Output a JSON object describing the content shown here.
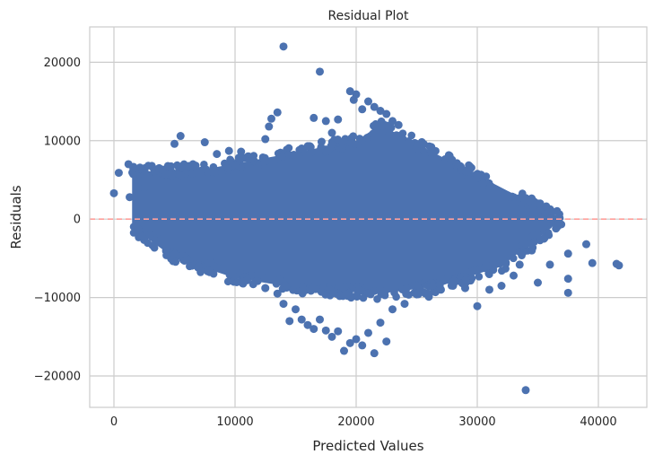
{
  "chart_data": {
    "type": "scatter",
    "title": "Residual Plot",
    "xlabel": "Predicted Values",
    "ylabel": "Residuals",
    "xlim": [
      -2000,
      44000
    ],
    "ylim": [
      -24000,
      24500
    ],
    "xticks": [
      0,
      10000,
      20000,
      30000,
      40000
    ],
    "yticks": [
      -20000,
      -10000,
      0,
      10000,
      20000
    ],
    "xtick_labels": [
      "0",
      "10000",
      "20000",
      "30000",
      "40000"
    ],
    "ytick_labels": [
      "−20000",
      "−10000",
      "0",
      "10000",
      "20000"
    ],
    "grid": true,
    "reference_line": {
      "y": 0,
      "style": "dashed",
      "color": "#ff9f9b"
    },
    "point_color": "#4c72b0",
    "dense_region": {
      "x_range": [
        1500,
        37000
      ],
      "upper_edge": [
        [
          1500,
          6000
        ],
        [
          8000,
          6500
        ],
        [
          15000,
          8500
        ],
        [
          20000,
          10000
        ],
        [
          22000,
          12000
        ],
        [
          37000,
          0
        ]
      ],
      "lower_edge": [
        [
          1500,
          -1000
        ],
        [
          5000,
          -5000
        ],
        [
          10000,
          -7500
        ],
        [
          16000,
          -9000
        ],
        [
          22000,
          -9500
        ],
        [
          27000,
          -8500
        ],
        [
          32000,
          -6000
        ],
        [
          37000,
          0
        ]
      ]
    },
    "points": [
      [
        0,
        3300
      ],
      [
        400,
        5900
      ],
      [
        1200,
        7000
      ],
      [
        1600,
        6500
      ],
      [
        1300,
        2800
      ],
      [
        2500,
        4000
      ],
      [
        3000,
        5200
      ],
      [
        4000,
        6300
      ],
      [
        5000,
        9600
      ],
      [
        5500,
        10600
      ],
      [
        7500,
        9800
      ],
      [
        8500,
        8300
      ],
      [
        9500,
        8700
      ],
      [
        10500,
        8600
      ],
      [
        12500,
        10200
      ],
      [
        12800,
        11800
      ],
      [
        13000,
        12800
      ],
      [
        13500,
        13600
      ],
      [
        14000,
        22000
      ],
      [
        15500,
        9000
      ],
      [
        16000,
        9300
      ],
      [
        16500,
        12900
      ],
      [
        17000,
        18800
      ],
      [
        17500,
        12500
      ],
      [
        18000,
        11000
      ],
      [
        18500,
        12700
      ],
      [
        19500,
        16300
      ],
      [
        19800,
        15200
      ],
      [
        20000,
        15900
      ],
      [
        20500,
        14000
      ],
      [
        21000,
        15000
      ],
      [
        21500,
        14300
      ],
      [
        22000,
        13800
      ],
      [
        22500,
        13400
      ],
      [
        23000,
        12500
      ],
      [
        23500,
        12000
      ],
      [
        2000,
        -1400
      ],
      [
        3000,
        -2000
      ],
      [
        4000,
        -2500
      ],
      [
        5000,
        -4500
      ],
      [
        6000,
        -5200
      ],
      [
        7000,
        -6000
      ],
      [
        8000,
        -5500
      ],
      [
        9000,
        -6200
      ],
      [
        11000,
        -7800
      ],
      [
        11500,
        -8300
      ],
      [
        12500,
        -8800
      ],
      [
        13500,
        -9500
      ],
      [
        14000,
        -10800
      ],
      [
        14500,
        -13000
      ],
      [
        15000,
        -11500
      ],
      [
        15500,
        -12800
      ],
      [
        16000,
        -13500
      ],
      [
        16500,
        -14000
      ],
      [
        17000,
        -12800
      ],
      [
        17500,
        -14200
      ],
      [
        18000,
        -15000
      ],
      [
        18500,
        -14300
      ],
      [
        19000,
        -16800
      ],
      [
        19500,
        -15800
      ],
      [
        20000,
        -15300
      ],
      [
        20500,
        -16100
      ],
      [
        21000,
        -14500
      ],
      [
        21500,
        -17100
      ],
      [
        22000,
        -13200
      ],
      [
        22500,
        -15600
      ],
      [
        23000,
        -11500
      ],
      [
        24000,
        -10800
      ],
      [
        25000,
        -9600
      ],
      [
        26000,
        -9900
      ],
      [
        27000,
        -9000
      ],
      [
        28000,
        -8500
      ],
      [
        29000,
        -8800
      ],
      [
        30000,
        -11100
      ],
      [
        31000,
        -9000
      ],
      [
        32000,
        -8500
      ],
      [
        33000,
        -7200
      ],
      [
        33500,
        -5800
      ],
      [
        34000,
        -3200
      ],
      [
        34500,
        -4000
      ],
      [
        35000,
        -8100
      ],
      [
        35500,
        -2500
      ],
      [
        36000,
        -5800
      ],
      [
        37500,
        -4400
      ],
      [
        37500,
        -7600
      ],
      [
        37500,
        -9400
      ],
      [
        39000,
        -3200
      ],
      [
        39500,
        -5600
      ],
      [
        41500,
        -5700
      ],
      [
        41700,
        -5900
      ],
      [
        34000,
        -21800
      ],
      [
        35000,
        -2000
      ],
      [
        36500,
        -1200
      ],
      [
        36800,
        -500
      ]
    ]
  }
}
